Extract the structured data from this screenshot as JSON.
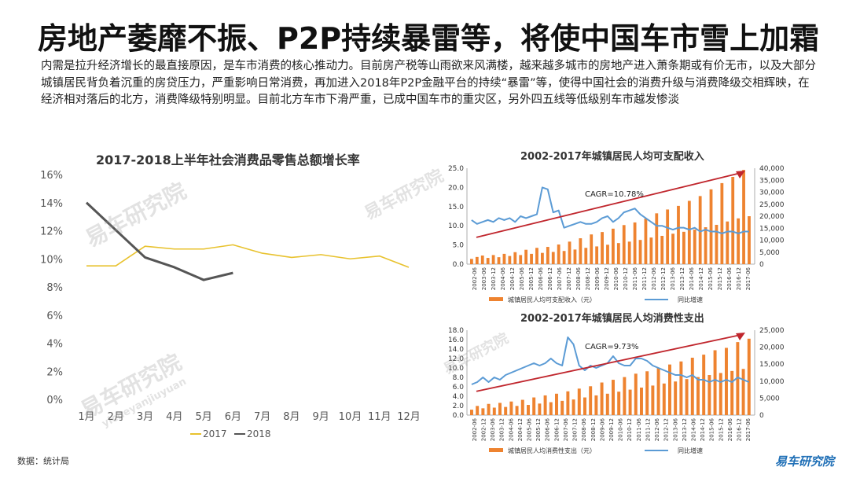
{
  "title": "房地产萎靡不振、P2P持续暴雷等，将使中国车市雪上加霜",
  "intro": "内需是拉升经济增长的最直接原因，是车市消费的核心推动力。目前房产税等山雨欲来风满楼，越来越多城市的房地产进入萧条期或有价无市，以及大部分城镇居民背负着沉重的房贷压力，严重影响日常消费，再加进入2018年P2P金融平台的持续“暴雷”等，使得中国社会的消费升级与消费降级交相辉映，在经济相对落后的北方，消费降级特别明显。目前北方车市下滑严重，已成中国车市的重灾区，另外四五线等低级别车市越发惨淡",
  "source": "数据：统计局",
  "logo": "易车研究院",
  "watermark": "易车研究院",
  "watermark_sub": "yicheyanjiuyuan",
  "colors": {
    "line2017": "#e8c22e",
    "line2018": "#555555",
    "bar": "#ee8330",
    "growth": "#5b9bd5",
    "trend": "#c0262d"
  },
  "chart_data": [
    {
      "type": "line",
      "title": "2017-2018上半年社会消费品零售总额增长率",
      "categories": [
        "1月",
        "2月",
        "3月",
        "4月",
        "5月",
        "6月",
        "7月",
        "8月",
        "9月",
        "10月",
        "11月",
        "12月"
      ],
      "series": [
        {
          "name": "2017",
          "values": [
            9.5,
            9.5,
            10.9,
            10.7,
            10.7,
            11.0,
            10.4,
            10.1,
            10.3,
            10.0,
            10.2,
            9.4
          ]
        },
        {
          "name": "2018",
          "values": [
            14.0,
            null,
            10.1,
            9.4,
            8.5,
            9.0,
            null,
            null,
            null,
            null,
            null,
            null
          ]
        }
      ],
      "ylim": [
        0,
        16
      ],
      "yticks": [
        "0%",
        "2%",
        "4%",
        "6%",
        "8%",
        "10%",
        "12%",
        "14%",
        "16%"
      ],
      "legend": "bottom"
    },
    {
      "type": "bar",
      "title": "2002-2017年城镇居民人均可支配收入",
      "annotation": "CAGR=10.78%",
      "xticks": [
        "2002-06",
        "2003-06",
        "2003-12",
        "2004-06",
        "2004-12",
        "2005-06",
        "2005-12",
        "2006-06",
        "2006-12",
        "2007-06",
        "2007-12",
        "2008-06",
        "2008-12",
        "2009-06",
        "2009-12",
        "2010-06",
        "2010-12",
        "2011-06",
        "2011-12",
        "2012-06",
        "2012-12",
        "2013-06",
        "2013-12",
        "2014-06",
        "2014-12",
        "2015-06",
        "2015-12",
        "2016-06",
        "2016-12",
        "2017-06"
      ],
      "series": [
        {
          "name": "城镇居民人均可支配收入（元）",
          "axis": "right",
          "values": [
            2200,
            3000,
            3600,
            2600,
            3800,
            2900,
            4300,
            3400,
            5000,
            3800,
            6000,
            4300,
            6800,
            4700,
            7200,
            5100,
            8200,
            5500,
            9400,
            6100,
            10800,
            6800,
            12400,
            7400,
            13400,
            8100,
            14800,
            8800,
            16300,
            9400,
            17400,
            10100,
            19000,
            11100,
            21200,
            11800,
            22800,
            12700,
            24300,
            13500,
            26400,
            14400,
            28400,
            15400,
            31200,
            16400,
            33800,
            17800,
            36400,
            19100,
            39300,
            20000
          ]
        },
        {
          "name": "同比增速",
          "axis": "left",
          "values": [
            11.5,
            10.5,
            11.0,
            11.5,
            11.0,
            12.0,
            11.5,
            12.0,
            11.0,
            12.5,
            12.0,
            12.5,
            13.0,
            20.0,
            19.5,
            13.5,
            14.0,
            9.5,
            10.0,
            10.5,
            11.0,
            10.5,
            10.5,
            11.0,
            12.0,
            12.5,
            11.0,
            12.0,
            13.5,
            14.0,
            14.5,
            13.0,
            12.0,
            11.0,
            10.0,
            10.0,
            9.5,
            9.0,
            9.5,
            9.5,
            9.0,
            9.5,
            8.5,
            9.0,
            8.5,
            8.5,
            8.0,
            8.5,
            8.5,
            8.0,
            8.5,
            8.5
          ]
        }
      ],
      "yleft": [
        "0.0",
        "5.0",
        "10.0",
        "15.0",
        "20.0",
        "25.0"
      ],
      "yright": [
        "0",
        "5,000",
        "10,000",
        "15,000",
        "20,000",
        "25,000",
        "30,000",
        "35,000",
        "40,000"
      ],
      "ylim_left": [
        0,
        25
      ],
      "ylim_right": [
        0,
        40000
      ],
      "legend": "bottom"
    },
    {
      "type": "bar",
      "title": "2002-2017年城镇居民人均消费性支出",
      "annotation": "CAGR=9.73%",
      "xticks": [
        "2002-06",
        "2002-12",
        "2003-06",
        "2003-12",
        "2004-06",
        "2004-12",
        "2005-06",
        "2005-12",
        "2006-06",
        "2006-12",
        "2007-06",
        "2007-12",
        "2008-06",
        "2008-12",
        "2009-06",
        "2009-12",
        "2010-06",
        "2010-12",
        "2011-06",
        "2011-12",
        "2012-06",
        "2012-12",
        "2013-06",
        "2013-12",
        "2014-06",
        "2014-12",
        "2015-06",
        "2015-12",
        "2016-06",
        "2016-12",
        "2017-06"
      ],
      "series": [
        {
          "name": "城镇居民人均消费性支出（元）",
          "axis": "right",
          "values": [
            1600,
            2700,
            2000,
            3300,
            2200,
            3600,
            2400,
            4000,
            2700,
            4500,
            3000,
            5200,
            3400,
            5800,
            3800,
            6300,
            4200,
            7000,
            4600,
            7800,
            5200,
            8500,
            5800,
            9600,
            6300,
            10400,
            6900,
            11200,
            7500,
            12200,
            8100,
            12900,
            8700,
            13900,
            9300,
            14900,
            9900,
            15800,
            10600,
            16900,
            11200,
            17800,
            11800,
            19100,
            12400,
            19800,
            13000,
            21500,
            13600,
            22500
          ]
        },
        {
          "name": "同比增速",
          "axis": "left",
          "values": [
            6.5,
            7.0,
            8.0,
            7.0,
            8.0,
            7.5,
            8.5,
            9.0,
            9.5,
            10.0,
            10.5,
            11.0,
            10.5,
            11.0,
            12.0,
            11.0,
            10.5,
            16.5,
            15.0,
            10.5,
            9.5,
            10.5,
            10.0,
            10.5,
            11.0,
            12.5,
            11.0,
            10.5,
            10.5,
            12.0,
            12.0,
            11.5,
            10.5,
            10.0,
            9.5,
            9.0,
            8.5,
            8.5,
            8.0,
            8.5,
            7.5,
            7.5,
            7.0,
            7.5,
            7.0,
            7.5,
            7.0,
            8.0,
            7.5,
            7.0
          ]
        }
      ],
      "yleft": [
        "0.0",
        "2.0",
        "4.0",
        "6.0",
        "8.0",
        "10.0",
        "12.0",
        "14.0",
        "16.0",
        "18.0"
      ],
      "yright": [
        "0",
        "5,000",
        "10,000",
        "15,000",
        "20,000",
        "25,000"
      ],
      "ylim_left": [
        0,
        18
      ],
      "ylim_right": [
        0,
        25000
      ],
      "legend": "bottom"
    }
  ]
}
